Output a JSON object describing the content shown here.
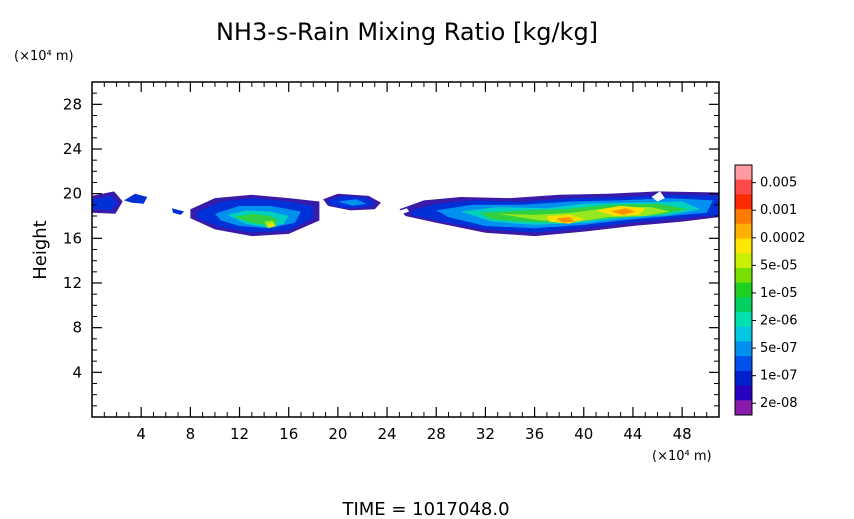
{
  "chart_data": {
    "type": "heatmap",
    "title": "NH3-s-Rain Mixing Ratio [kg/kg]",
    "xlabel": "",
    "ylabel": "Height",
    "x_unit_label": "(×10⁴ m)",
    "y_unit_label": "(×10⁴ m)",
    "xlim": [
      0,
      51
    ],
    "ylim": [
      0,
      30
    ],
    "x_ticks": [
      "4",
      "8",
      "12",
      "16",
      "20",
      "24",
      "28",
      "32",
      "36",
      "40",
      "44",
      "48"
    ],
    "y_ticks": [
      "4",
      "8",
      "12",
      "16",
      "20",
      "24",
      "28"
    ],
    "footer": "TIME  =  1017048.0",
    "colorbar": {
      "labels": [
        "0.005",
        "0.001",
        "0.0002",
        "5e-05",
        "1e-05",
        "2e-06",
        "5e-07",
        "1e-07",
        "2e-08"
      ],
      "colors_top_to_bottom": [
        "#ff9aa0",
        "#ff4a4a",
        "#ff2a00",
        "#ff7a00",
        "#ffb000",
        "#ffe600",
        "#c8f000",
        "#78e000",
        "#20d020",
        "#00d060",
        "#00e0b0",
        "#00c8e0",
        "#0090f0",
        "#0050f0",
        "#0020d0",
        "#2a00c0",
        "#8a1aaa"
      ]
    },
    "regions": [
      {
        "name": "band",
        "x_range": [
          0,
          51
        ],
        "y_range": [
          17.5,
          20
        ],
        "level": "1e-07"
      },
      {
        "name": "core-14",
        "x": 14.5,
        "y": 17.2,
        "level": "5e-05"
      },
      {
        "name": "core-38",
        "x": 38.5,
        "y": 17.6,
        "level": "0.0002"
      },
      {
        "name": "core-43",
        "x": 43,
        "y": 18.3,
        "level": "0.0002"
      }
    ]
  }
}
